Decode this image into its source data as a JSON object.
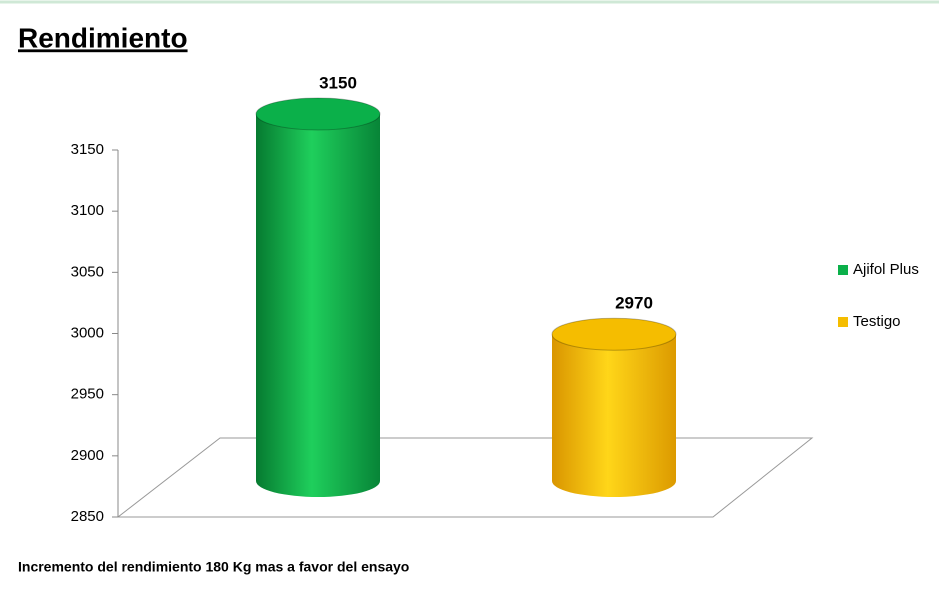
{
  "chart_data": {
    "type": "bar",
    "title": "Rendimiento",
    "categories": [
      null
    ],
    "series": [
      {
        "name": "Ajifol Plus",
        "color": "#0bb04a",
        "values": [
          3150
        ]
      },
      {
        "name": "Testigo",
        "color": "#f5bd00",
        "values": [
          2970
        ]
      }
    ],
    "ylim": [
      2850,
      3150
    ],
    "yticks": [
      2850,
      2900,
      2950,
      3000,
      3050,
      3100,
      3150
    ],
    "legend": "right",
    "annotation": "Incremento del rendimiento 180 Kg mas a favor del ensayo"
  }
}
